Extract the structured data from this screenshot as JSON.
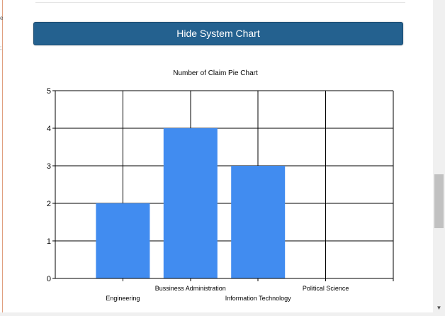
{
  "page": {
    "toggle_button_label": "Hide System Chart"
  },
  "chart_data": {
    "type": "bar",
    "title": "Number of Claim Pie Chart",
    "categories": [
      "Engineering",
      "Bussiness Administration",
      "Information Technology",
      "Political Science"
    ],
    "values": [
      2,
      4,
      3,
      0
    ],
    "xlabel": "",
    "ylabel": "",
    "ylim": [
      0,
      5
    ],
    "yticks": [
      0,
      1,
      2,
      3,
      4,
      5
    ],
    "grid": true,
    "bar_color": "#418cf0"
  },
  "scrollbar": {
    "down_arrow_icon": "chevron-down-icon"
  }
}
